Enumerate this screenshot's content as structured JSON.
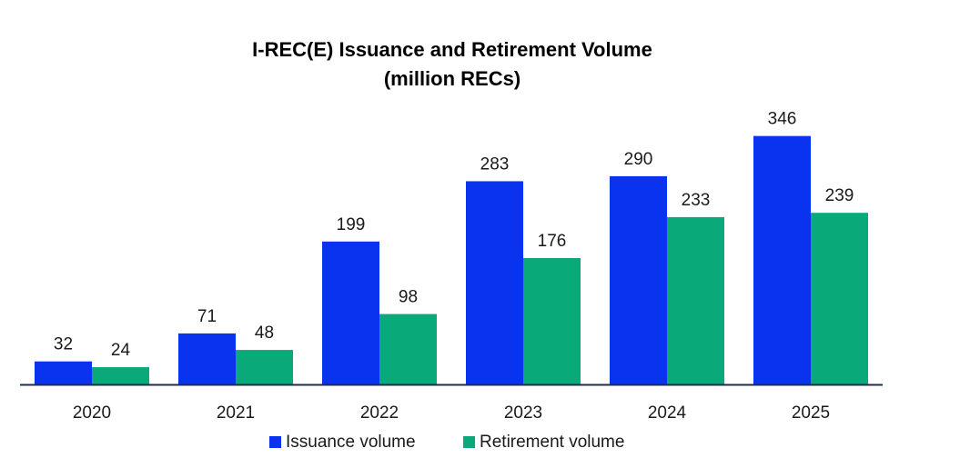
{
  "chart_data": {
    "type": "bar",
    "title": "I-REC(E) Issuance and Retirement Volume",
    "subtitle": "(million RECs)",
    "categories": [
      "2020",
      "2021",
      "2022",
      "2023",
      "2024",
      "2025"
    ],
    "series": [
      {
        "name": "Issuance volume",
        "values": [
          32,
          71,
          199,
          283,
          290,
          346
        ],
        "color": "#0a33f0"
      },
      {
        "name": "Retirement volume",
        "values": [
          24,
          48,
          98,
          176,
          233,
          239
        ],
        "color": "#0aa97a"
      }
    ],
    "ylim": [
      0,
      390
    ],
    "grid": false,
    "legend_position": "bottom",
    "data_labels": true,
    "axis_color": "#1f2d4d"
  }
}
